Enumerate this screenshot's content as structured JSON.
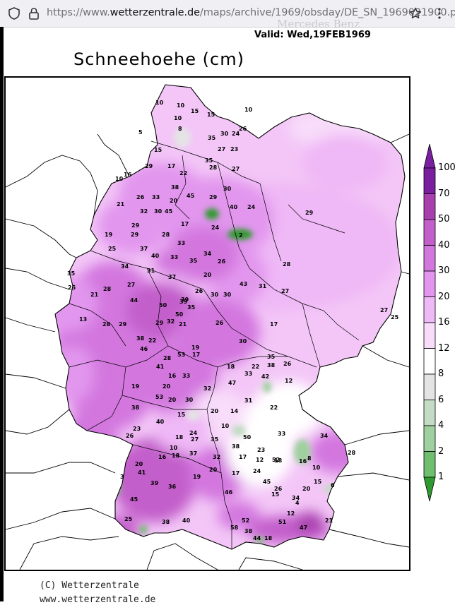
{
  "browser": {
    "url_prefix": "https://www.",
    "url_domain": "wetterzentrale.de",
    "url_path": "/maps/archive/1969/obsday/DE_SN_1969021900.png"
  },
  "map": {
    "valid_text": "Valid:  Wed,19FEB1969",
    "ghost_brand": "Mercedes Benz",
    "title": "Schneehoehe (cm)",
    "credit_line1": "(C) Wetterzentrale",
    "credit_line2": "www.wetterzentrale.de"
  },
  "legend": {
    "labels": [
      "100",
      "70",
      "50",
      "40",
      "30",
      "20",
      "16",
      "12",
      "8",
      "6",
      "4",
      "2",
      "1"
    ],
    "colors": [
      "#7a1fa0",
      "#a83fae",
      "#c35fcb",
      "#d377df",
      "#e296ee",
      "#efb8f6",
      "#f8dcfa",
      "#ffffff",
      "#e4e4e4",
      "#c3dcc3",
      "#9fd09f",
      "#6fbf6f",
      "#2f9a2f"
    ]
  },
  "station_values": [
    {
      "v": "10"
    },
    {
      "v": "10"
    },
    {
      "v": "15"
    },
    {
      "v": "10"
    },
    {
      "v": "10"
    },
    {
      "v": "8"
    },
    {
      "v": "5"
    },
    {
      "v": "15"
    },
    {
      "v": "26"
    },
    {
      "v": "30"
    },
    {
      "v": "24"
    },
    {
      "v": "35"
    },
    {
      "v": "27"
    },
    {
      "v": "23"
    },
    {
      "v": "15"
    },
    {
      "v": "16"
    },
    {
      "v": "29"
    },
    {
      "v": "17"
    },
    {
      "v": "22"
    },
    {
      "v": "35"
    },
    {
      "v": "28"
    },
    {
      "v": "27"
    },
    {
      "v": "10"
    },
    {
      "v": "21"
    },
    {
      "v": "26"
    },
    {
      "v": "33"
    },
    {
      "v": "38"
    },
    {
      "v": "45"
    },
    {
      "v": "30"
    },
    {
      "v": "29"
    },
    {
      "v": "40"
    },
    {
      "v": "24"
    },
    {
      "v": "29"
    },
    {
      "v": "32"
    },
    {
      "v": "30"
    },
    {
      "v": "45"
    },
    {
      "v": "20"
    },
    {
      "v": "29"
    },
    {
      "v": "17"
    },
    {
      "v": "24"
    },
    {
      "v": "2"
    },
    {
      "v": "19"
    },
    {
      "v": "29"
    },
    {
      "v": "28"
    },
    {
      "v": "33"
    },
    {
      "v": "25"
    },
    {
      "v": "37"
    },
    {
      "v": "40"
    },
    {
      "v": "33"
    },
    {
      "v": "34"
    },
    {
      "v": "31"
    },
    {
      "v": "37"
    },
    {
      "v": "35"
    },
    {
      "v": "26"
    },
    {
      "v": "28"
    },
    {
      "v": "34"
    },
    {
      "v": "28"
    },
    {
      "v": "20"
    },
    {
      "v": "43"
    },
    {
      "v": "31"
    },
    {
      "v": "27"
    },
    {
      "v": "35"
    },
    {
      "v": "25"
    },
    {
      "v": "21"
    },
    {
      "v": "27"
    },
    {
      "v": "44"
    },
    {
      "v": "50"
    },
    {
      "v": "39"
    },
    {
      "v": "26"
    },
    {
      "v": "30"
    },
    {
      "v": "21"
    },
    {
      "v": "30"
    },
    {
      "v": "27"
    },
    {
      "v": "25"
    },
    {
      "v": "13"
    },
    {
      "v": "28"
    },
    {
      "v": "29"
    },
    {
      "v": "32"
    },
    {
      "v": "35"
    },
    {
      "v": "26"
    },
    {
      "v": "17"
    },
    {
      "v": "39"
    },
    {
      "v": "50"
    },
    {
      "v": "38"
    },
    {
      "v": "46"
    },
    {
      "v": "22"
    },
    {
      "v": "29"
    },
    {
      "v": "19"
    },
    {
      "v": "30"
    },
    {
      "v": "35"
    },
    {
      "v": "38"
    },
    {
      "v": "41"
    },
    {
      "v": "28"
    },
    {
      "v": "53"
    },
    {
      "v": "17"
    },
    {
      "v": "18"
    },
    {
      "v": "22"
    },
    {
      "v": "42"
    },
    {
      "v": "26"
    },
    {
      "v": "33"
    },
    {
      "v": "16"
    },
    {
      "v": "20"
    },
    {
      "v": "19"
    },
    {
      "v": "53"
    },
    {
      "v": "20"
    },
    {
      "v": "30"
    },
    {
      "v": "32"
    },
    {
      "v": "47"
    },
    {
      "v": "33"
    },
    {
      "v": "12"
    },
    {
      "v": "20"
    },
    {
      "v": "14"
    },
    {
      "v": "31"
    },
    {
      "v": "22"
    },
    {
      "v": "38"
    },
    {
      "v": "40"
    },
    {
      "v": "15"
    },
    {
      "v": "23"
    },
    {
      "v": "26"
    },
    {
      "v": "18"
    },
    {
      "v": "24"
    },
    {
      "v": "10"
    },
    {
      "v": "27"
    },
    {
      "v": "35"
    },
    {
      "v": "38"
    },
    {
      "v": "50"
    },
    {
      "v": "23"
    },
    {
      "v": "52"
    },
    {
      "v": "33"
    },
    {
      "v": "34"
    },
    {
      "v": "28"
    },
    {
      "v": "20"
    },
    {
      "v": "41"
    },
    {
      "v": "16"
    },
    {
      "v": "18"
    },
    {
      "v": "37"
    },
    {
      "v": "32"
    },
    {
      "v": "17"
    },
    {
      "v": "12"
    },
    {
      "v": "18"
    },
    {
      "v": "16"
    },
    {
      "v": "10"
    },
    {
      "v": "46"
    },
    {
      "v": "39"
    },
    {
      "v": "36"
    },
    {
      "v": "19"
    },
    {
      "v": "20"
    },
    {
      "v": "17"
    },
    {
      "v": "24"
    },
    {
      "v": "45"
    },
    {
      "v": "26"
    },
    {
      "v": "34"
    },
    {
      "v": "20"
    },
    {
      "v": "15"
    },
    {
      "v": "15"
    },
    {
      "v": "12"
    },
    {
      "v": "25"
    },
    {
      "v": "45"
    },
    {
      "v": "38"
    },
    {
      "v": "40"
    },
    {
      "v": "52"
    },
    {
      "v": "38"
    },
    {
      "v": "51"
    },
    {
      "v": "47"
    },
    {
      "v": "21"
    },
    {
      "v": "58"
    },
    {
      "v": "44"
    },
    {
      "v": "18"
    },
    {
      "v": "4"
    },
    {
      "v": "8"
    },
    {
      "v": "10"
    },
    {
      "v": "6"
    },
    {
      "v": "3"
    }
  ]
}
